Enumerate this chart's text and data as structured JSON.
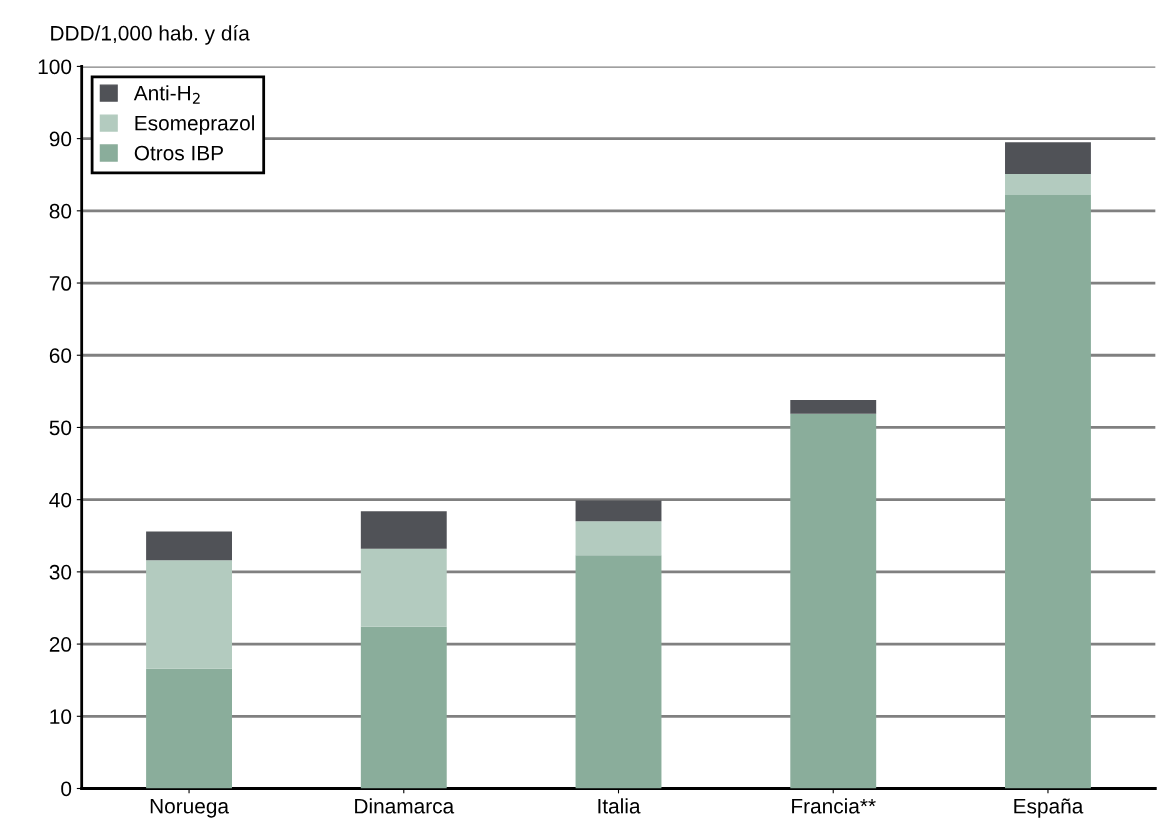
{
  "chart_data": {
    "type": "bar",
    "stacked": true,
    "ylabel": "DDD/1,000 hab. y día",
    "categories": [
      "Noruega",
      "Dinamarca",
      "Italia",
      "Francia**",
      "España"
    ],
    "series": [
      {
        "name": "Otros IBP",
        "color": "#8aad9b",
        "values": [
          16.6,
          22.4,
          32.3,
          51.9,
          82.2
        ]
      },
      {
        "name": "Esomeprazol",
        "color": "#b3cbbf",
        "values": [
          15.0,
          10.8,
          4.7,
          0,
          2.9
        ]
      },
      {
        "name": "Anti-H$_{2}$",
        "color": "#505257",
        "values": [
          4.0,
          5.2,
          2.9,
          1.9,
          4.4
        ]
      }
    ],
    "ylim": [
      0,
      100
    ],
    "yticks": [
      0,
      10,
      20,
      30,
      40,
      50,
      60,
      70,
      80,
      90,
      100
    ],
    "grid": "y",
    "legend": "top left"
  }
}
